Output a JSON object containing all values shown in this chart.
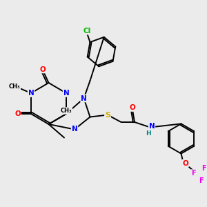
{
  "bg_color": "#ebebeb",
  "atom_colors": {
    "N": "#0000ff",
    "O": "#ff0000",
    "S": "#ccaa00",
    "Cl": "#00bb00",
    "F": "#ee00ee",
    "C": "#000000",
    "H": "#008080"
  },
  "bond_color": "#000000",
  "lw": 1.4
}
